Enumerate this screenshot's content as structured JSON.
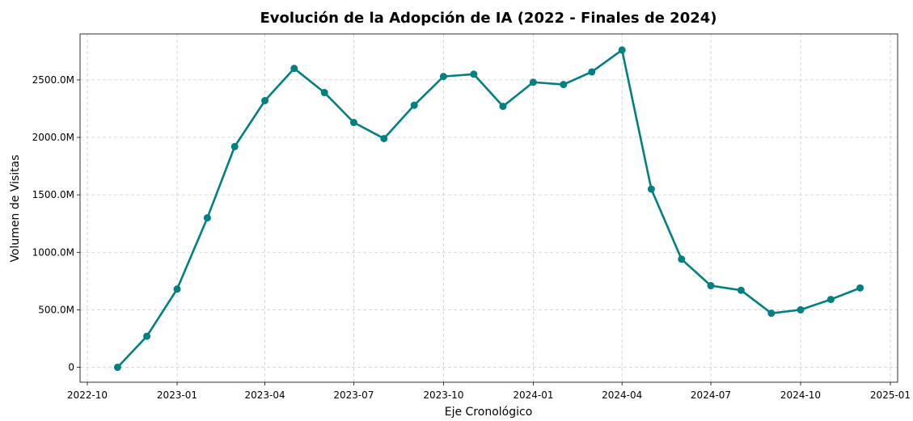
{
  "chart_data": {
    "type": "line",
    "title": "Evolución de la Adopción de IA (2022 - Finales de 2024)",
    "x_label": "Eje Cronológico",
    "y_label": "Volumen de Visitas",
    "x": [
      "2022-11",
      "2022-12",
      "2023-01",
      "2023-02",
      "2023-03",
      "2023-04",
      "2023-05",
      "2023-06",
      "2023-07",
      "2023-08",
      "2023-09",
      "2023-10",
      "2023-11",
      "2023-12",
      "2024-01",
      "2024-02",
      "2024-03",
      "2024-04",
      "2024-05",
      "2024-06",
      "2024-07",
      "2024-08",
      "2024-09",
      "2024-10",
      "2024-11",
      "2024-12"
    ],
    "series": [
      {
        "name": "Volumen de Visitas",
        "color": "#008080",
        "values": [
          0,
          270,
          680,
          1300,
          1920,
          2320,
          2600,
          2390,
          2130,
          1990,
          2280,
          2530,
          2550,
          2270,
          2480,
          2460,
          2570,
          2760,
          1550,
          940,
          710,
          670,
          470,
          500,
          590,
          690
        ]
      }
    ],
    "xlim": [
      "2022-10",
      "2025-01"
    ],
    "xticks": [
      "2022-10",
      "2023-01",
      "2023-04",
      "2023-07",
      "2023-10",
      "2024-01",
      "2024-04",
      "2024-07",
      "2024-10",
      "2025-01"
    ],
    "ylim": [
      -130,
      2900
    ],
    "yticks": [
      0,
      {
        "value": 500,
        "label": "500.0M"
      },
      {
        "value": 1000,
        "label": "1000.0M"
      },
      {
        "value": 1500,
        "label": "1500.0M"
      },
      {
        "value": 2000,
        "label": "2000.0M"
      },
      {
        "value": 2500,
        "label": "2500.0M"
      }
    ],
    "grid": true,
    "markers": true
  }
}
